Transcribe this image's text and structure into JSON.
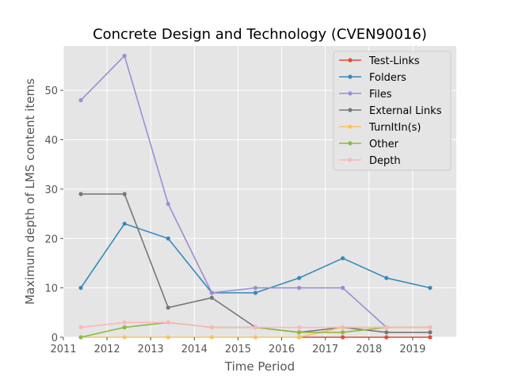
{
  "chart_data": {
    "type": "line",
    "title": "Concrete Design and Technology (CVEN90016)",
    "xlabel": "Time Period",
    "ylabel": "Maximum depth of LMS content items",
    "xlim": [
      2011.0,
      2020.0
    ],
    "ylim": [
      0,
      59
    ],
    "xticks": [
      2011,
      2012,
      2013,
      2014,
      2015,
      2016,
      2017,
      2018,
      2019
    ],
    "yticks": [
      0,
      10,
      20,
      30,
      40,
      50
    ],
    "grid": true,
    "legend_position": "upper right",
    "x": [
      2011.4,
      2012.4,
      2013.4,
      2014.4,
      2015.4,
      2016.4,
      2017.4,
      2018.4,
      2019.4
    ],
    "series": [
      {
        "name": "Test-Links",
        "color": "#E24A33",
        "values": [
          null,
          null,
          null,
          null,
          null,
          0,
          0,
          0,
          0
        ]
      },
      {
        "name": "Folders",
        "color": "#348ABD",
        "values": [
          10,
          23,
          20,
          9,
          9,
          12,
          16,
          12,
          10
        ]
      },
      {
        "name": "Files",
        "color": "#988ED5",
        "values": [
          48,
          57,
          27,
          9,
          10,
          10,
          10,
          2,
          2
        ]
      },
      {
        "name": "External Links",
        "color": "#777777",
        "values": [
          29,
          29,
          6,
          8,
          2,
          1,
          2,
          1,
          1
        ]
      },
      {
        "name": "TurnItIn(s)",
        "color": "#FBC15E",
        "values": [
          0,
          0,
          0,
          0,
          0,
          0,
          2,
          2,
          2
        ]
      },
      {
        "name": "Other",
        "color": "#8EBA42",
        "values": [
          0,
          2,
          3,
          2,
          2,
          1,
          1,
          2,
          2
        ]
      },
      {
        "name": "Depth",
        "color": "#FFB5B8",
        "values": [
          2,
          3,
          3,
          2,
          2,
          2,
          2,
          2,
          2
        ]
      }
    ]
  }
}
